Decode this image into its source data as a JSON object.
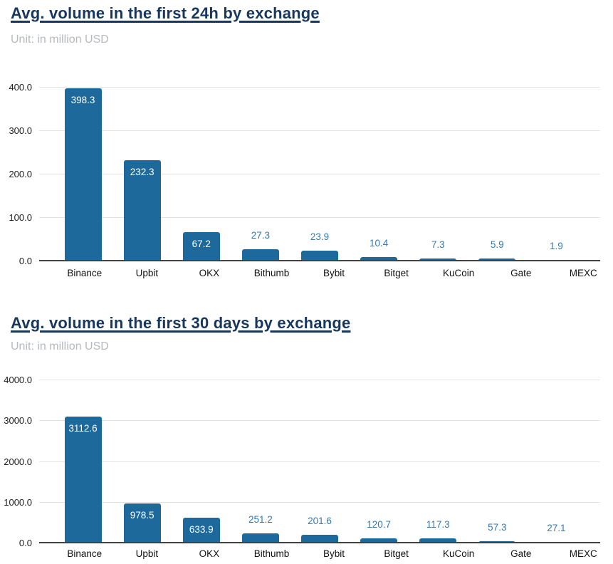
{
  "colors": {
    "bar": "#1d699b",
    "value_label_inside": "#ffffff",
    "value_label_outside": "#3578ae",
    "title": "#17375e",
    "subtitle": "#b6babd",
    "gridline": "#e3e3e3",
    "axis_line": "#424242",
    "tick_label": "#1c1c1c",
    "x_label": "#111111"
  },
  "chart_data": [
    {
      "type": "bar",
      "title": "Avg. volume in the first 24h by exchange",
      "subtitle": "Unit: in million USD",
      "categories": [
        "Binance",
        "Upbit",
        "OKX",
        "Bithumb",
        "Bybit",
        "Bitget",
        "KuCoin",
        "Gate",
        "MEXC"
      ],
      "values": [
        398.3,
        232.3,
        67.2,
        27.3,
        23.9,
        10.4,
        7.3,
        5.9,
        1.9
      ],
      "value_labels": [
        "398.3",
        "232.3",
        "67.2",
        "27.3",
        "23.9",
        "10.4",
        "7.3",
        "5.9",
        "1.9"
      ],
      "xlabel": "",
      "ylabel": "",
      "ylim": [
        0,
        400
      ],
      "yticks": [
        0,
        100,
        200,
        300,
        400
      ],
      "ytick_labels": [
        "0.0",
        "100.0",
        "200.0",
        "300.0",
        "400.0"
      ],
      "grid": true,
      "legend": "none"
    },
    {
      "type": "bar",
      "title": "Avg. volume in the first 30 days by exchange",
      "subtitle": "Unit: in million USD",
      "categories": [
        "Binance",
        "Upbit",
        "OKX",
        "Bithumb",
        "Bybit",
        "Bitget",
        "KuCoin",
        "Gate",
        "MEXC"
      ],
      "values": [
        3112.6,
        978.5,
        633.9,
        251.2,
        201.6,
        120.7,
        117.3,
        57.3,
        27.1
      ],
      "value_labels": [
        "3112.6",
        "978.5",
        "633.9",
        "251.2",
        "201.6",
        "120.7",
        "117.3",
        "57.3",
        "27.1"
      ],
      "xlabel": "",
      "ylabel": "",
      "ylim": [
        0,
        4000
      ],
      "yticks": [
        0,
        1000,
        2000,
        3000,
        4000
      ],
      "ytick_labels": [
        "0.0",
        "1000.0",
        "2000.0",
        "3000.0",
        "4000.0"
      ],
      "grid": true,
      "legend": "none"
    }
  ]
}
